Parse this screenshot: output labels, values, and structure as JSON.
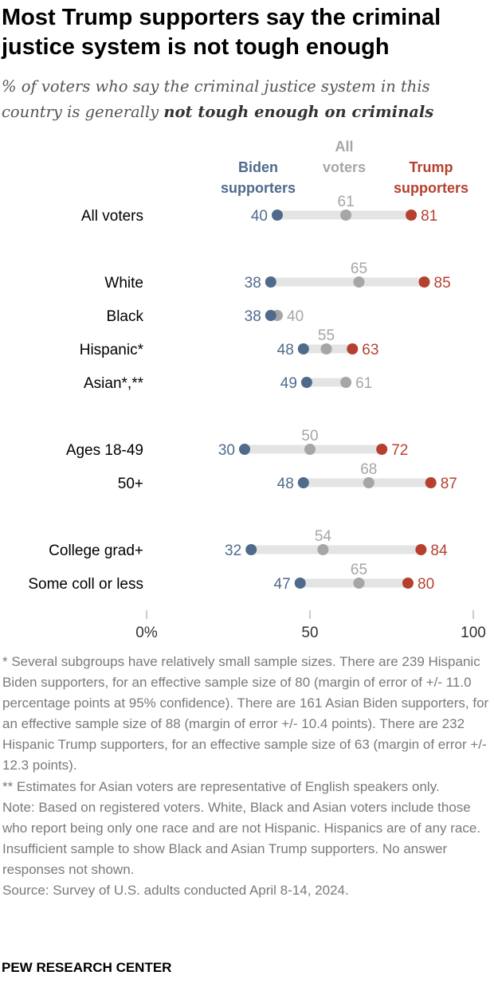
{
  "title": "Most Trump supporters say the criminal justice system is not tough enough",
  "subtitle_plain": "% of voters who say the criminal justice system in this country is generally ",
  "subtitle_bold": "not tough enough on criminals",
  "chart_data": {
    "type": "dot",
    "legend": {
      "biden": [
        "Biden",
        "supporters"
      ],
      "all": [
        "All",
        "voters"
      ],
      "trump": [
        "Trump",
        "supporters"
      ]
    },
    "series_colors": {
      "biden": "#4f6b8c",
      "all": "#a6a6a6",
      "trump": "#b5402f"
    },
    "range_bar_color": "#e4e4e4",
    "x_ticks": [
      {
        "value": 0,
        "label": "0%"
      },
      {
        "value": 50,
        "label": "50"
      },
      {
        "value": 100,
        "label": "100"
      }
    ],
    "xlim": [
      0,
      100
    ],
    "rows": [
      {
        "label": "All voters",
        "biden": 40,
        "all": 61,
        "trump": 81,
        "group": 0
      },
      {
        "label": "White",
        "biden": 38,
        "all": 65,
        "trump": 85,
        "group": 1
      },
      {
        "label": "Black",
        "biden": 38,
        "all": 40,
        "trump": null,
        "group": 1
      },
      {
        "label": "Hispanic*",
        "biden": 48,
        "all": 55,
        "trump": 63,
        "group": 1
      },
      {
        "label": "Asian*,**",
        "biden": 49,
        "all": 61,
        "trump": null,
        "group": 1
      },
      {
        "label": "Ages 18-49",
        "biden": 30,
        "all": 50,
        "trump": 72,
        "group": 2
      },
      {
        "label": "50+",
        "biden": 48,
        "all": 68,
        "trump": 87,
        "group": 2
      },
      {
        "label": "College grad+",
        "biden": 32,
        "all": 54,
        "trump": 84,
        "group": 3
      },
      {
        "label": "Some coll or less",
        "biden": 47,
        "all": 65,
        "trump": 80,
        "group": 3
      }
    ]
  },
  "notes": [
    "* Several subgroups have relatively small sample sizes. There are 239 Hispanic Biden supporters, for an effective sample size of 80 (margin of error of +/- 11.0 percentage points at 95% confidence). There are 161 Asian Biden supporters, for an effective sample size of 88 (margin of error +/- 10.4 points). There are 232 Hispanic Trump supporters, for an effective sample size of 63 (margin of error +/- 12.3 points).",
    "** Estimates for Asian voters are representative of English speakers only.",
    "Note: Based on registered voters. White, Black and Asian voters include those who report being only one race and are not Hispanic. Hispanics are of any race. Insufficient sample to show Black and Asian Trump supporters. No answer responses not shown.",
    "Source: Survey of U.S. adults conducted April 8-14, 2024."
  ],
  "brand": "PEW RESEARCH CENTER"
}
